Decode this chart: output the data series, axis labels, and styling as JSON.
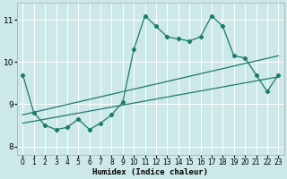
{
  "xlabel": "Humidex (Indice chaleur)",
  "xlim": [
    -0.5,
    23.5
  ],
  "ylim": [
    7.8,
    11.4
  ],
  "yticks": [
    8,
    9,
    10,
    11
  ],
  "xticks": [
    0,
    1,
    2,
    3,
    4,
    5,
    6,
    7,
    8,
    9,
    10,
    11,
    12,
    13,
    14,
    15,
    16,
    17,
    18,
    19,
    20,
    21,
    22,
    23
  ],
  "bg_color": "#cce8e8",
  "line_color": "#1a7a6e",
  "grid_color": "#ffffff",
  "zigzag": {
    "x": [
      0,
      1,
      2,
      3,
      4,
      5,
      6,
      7,
      8,
      9,
      10,
      11,
      12,
      13,
      14,
      15,
      16,
      17,
      18,
      19,
      20,
      21,
      22,
      23
    ],
    "y": [
      9.7,
      8.8,
      8.5,
      8.4,
      8.45,
      8.65,
      8.4,
      8.55,
      8.75,
      9.05,
      10.3,
      11.1,
      10.85,
      10.6,
      10.55,
      10.5,
      10.6,
      11.1,
      10.85,
      10.15,
      10.1,
      9.7,
      9.3,
      9.7
    ]
  },
  "trend1": {
    "x": [
      0,
      23
    ],
    "y": [
      8.55,
      9.65
    ]
  },
  "trend2": {
    "x": [
      0,
      23
    ],
    "y": [
      8.75,
      10.15
    ]
  }
}
